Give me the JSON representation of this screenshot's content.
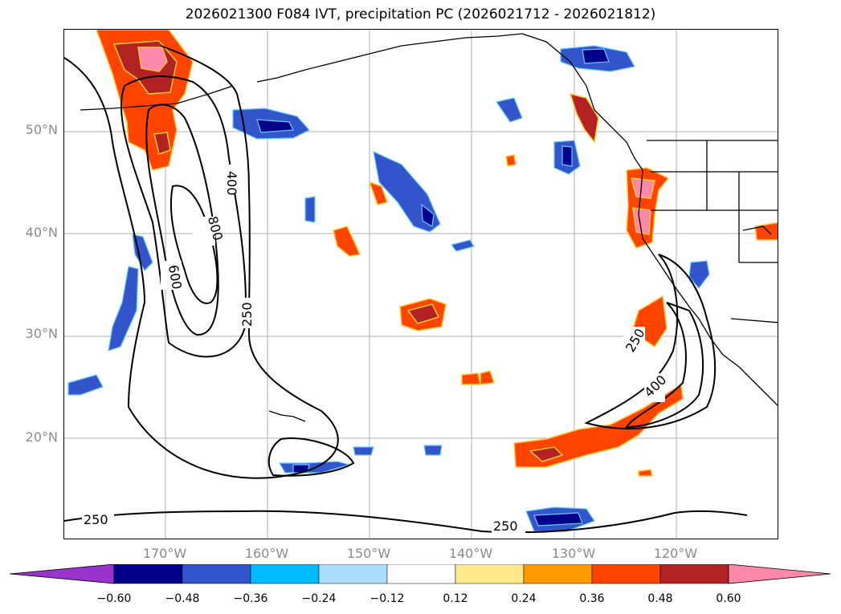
{
  "title": "2026021300 F084 IVT, precipitation PC (2026021712 - 2026021812)",
  "lat_labels": [
    "50°N",
    "40°N",
    "30°N",
    "20°N"
  ],
  "lon_labels": [
    "170°W",
    "160°W",
    "150°W",
    "140°W",
    "130°W",
    "120°W"
  ],
  "ivt_contour_labels": [
    "400",
    "800",
    "600",
    "250",
    "250",
    "400",
    "250",
    "250"
  ],
  "colorbar": {
    "ticks": [
      "−0.60",
      "−0.48",
      "−0.36",
      "−0.24",
      "−0.12",
      "0.12",
      "0.24",
      "0.36",
      "0.48",
      "0.60"
    ],
    "colors": [
      "#9933cc",
      "#00008b",
      "#3355cc",
      "#00bbff",
      "#aaddff",
      "#ffffff",
      "#ffe88a",
      "#ff9900",
      "#ff4400",
      "#b22222",
      "#ff88aa"
    ]
  },
  "colors": {
    "grid": "#b0b0b0",
    "coast": "#000000",
    "contour": "#000000"
  }
}
